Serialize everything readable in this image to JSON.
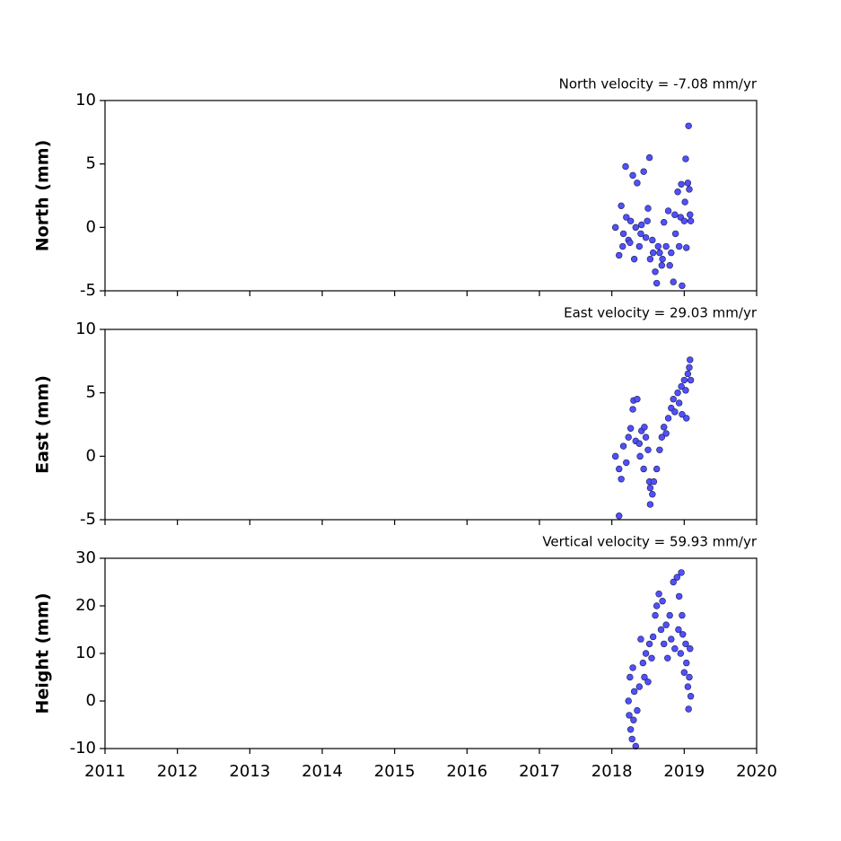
{
  "chart_data": [
    {
      "type": "scatter",
      "title": "North velocity = -7.08 mm/yr",
      "ylabel": "North (mm)",
      "color": "#5050ff",
      "x": [
        2018.05,
        2018.1,
        2018.13,
        2018.15,
        2018.16,
        2018.19,
        2018.2,
        2018.23,
        2018.25,
        2018.26,
        2018.29,
        2018.31,
        2018.33,
        2018.35,
        2018.38,
        2018.4,
        2018.41,
        2018.44,
        2018.47,
        2018.49,
        2018.5,
        2018.52,
        2018.53,
        2018.56,
        2018.57,
        2018.6,
        2018.62,
        2018.64,
        2018.66,
        2018.69,
        2018.7,
        2018.72,
        2018.75,
        2018.78,
        2018.8,
        2018.82,
        2018.85,
        2018.87,
        2018.88,
        2018.91,
        2018.93,
        2018.95,
        2018.96,
        2018.97,
        2019.0,
        2019.01,
        2019.02,
        2019.03,
        2019.05,
        2019.06,
        2019.07,
        2019.08,
        2019.09
      ],
      "values": [
        0,
        -2.2,
        1.7,
        -1.5,
        -0.5,
        4.8,
        0.8,
        -1,
        -1.2,
        0.5,
        4.1,
        -2.5,
        0,
        3.5,
        -1.5,
        -0.5,
        0.2,
        4.4,
        -0.8,
        0.5,
        1.5,
        5.5,
        -2.5,
        -1,
        -2,
        -3.5,
        -4.4,
        -1.5,
        -2,
        -3,
        -2.5,
        0.4,
        -1.5,
        1.3,
        -3,
        -2,
        -4.3,
        1,
        -0.5,
        2.8,
        -1.5,
        0.8,
        3.4,
        -4.6,
        0.5,
        2,
        5.4,
        -1.6,
        3.5,
        8,
        3,
        1,
        0.5
      ],
      "xlim": [
        2011,
        2020
      ],
      "xticks": [
        2011,
        2012,
        2013,
        2014,
        2015,
        2016,
        2017,
        2018,
        2019,
        2020
      ],
      "show_xtick_labels": false,
      "ylim": [
        -5,
        10
      ],
      "yticks": [
        -5,
        0,
        5,
        10
      ]
    },
    {
      "type": "scatter",
      "title": "East velocity = 29.03 mm/yr",
      "ylabel": "East (mm)",
      "color": "#5050ff",
      "x": [
        2018.05,
        2018.1,
        2018.1,
        2018.13,
        2018.16,
        2018.2,
        2018.23,
        2018.26,
        2018.29,
        2018.3,
        2018.33,
        2018.35,
        2018.38,
        2018.39,
        2018.41,
        2018.44,
        2018.45,
        2018.47,
        2018.5,
        2018.52,
        2018.53,
        2018.53,
        2018.56,
        2018.58,
        2018.62,
        2018.66,
        2018.69,
        2018.72,
        2018.75,
        2018.78,
        2018.82,
        2018.85,
        2018.87,
        2018.91,
        2018.93,
        2018.96,
        2018.97,
        2019.0,
        2019.02,
        2019.03,
        2019.05,
        2019.07,
        2019.08,
        2019.09
      ],
      "values": [
        0,
        -1,
        -4.7,
        -1.8,
        0.8,
        -0.5,
        1.5,
        2.2,
        3.7,
        4.4,
        1.2,
        4.5,
        1,
        0,
        2,
        -1,
        2.3,
        1.5,
        0.5,
        -2,
        -2.5,
        -3.8,
        -3,
        -2,
        -1,
        0.5,
        1.5,
        2.3,
        1.8,
        3,
        3.8,
        4.5,
        3.5,
        5,
        4.2,
        5.5,
        3.3,
        6,
        5.2,
        3,
        6.5,
        7,
        7.6,
        6
      ],
      "xlim": [
        2011,
        2020
      ],
      "xticks": [
        2011,
        2012,
        2013,
        2014,
        2015,
        2016,
        2017,
        2018,
        2019,
        2020
      ],
      "show_xtick_labels": false,
      "ylim": [
        -5,
        10
      ],
      "yticks": [
        -5,
        0,
        5,
        10
      ]
    },
    {
      "type": "scatter",
      "title": "Vertical velocity = 59.93 mm/yr",
      "ylabel": "Height (mm)",
      "color": "#5050ff",
      "x": [
        2018.23,
        2018.24,
        2018.25,
        2018.26,
        2018.28,
        2018.29,
        2018.3,
        2018.31,
        2018.33,
        2018.35,
        2018.38,
        2018.4,
        2018.43,
        2018.45,
        2018.47,
        2018.5,
        2018.52,
        2018.55,
        2018.57,
        2018.6,
        2018.62,
        2018.65,
        2018.68,
        2018.7,
        2018.72,
        2018.75,
        2018.77,
        2018.8,
        2018.82,
        2018.85,
        2018.87,
        2018.9,
        2018.92,
        2018.93,
        2018.95,
        2018.96,
        2018.97,
        2018.98,
        2019.0,
        2019.02,
        2019.03,
        2019.05,
        2019.06,
        2019.07,
        2019.08,
        2019.09
      ],
      "values": [
        0,
        -3,
        5,
        -6,
        -8,
        7,
        -4,
        2,
        -9.5,
        -2,
        3,
        13,
        8,
        5,
        10,
        4,
        12,
        9,
        13.5,
        18,
        20,
        22.5,
        15,
        21,
        12,
        16,
        9,
        18,
        13,
        25,
        11,
        26,
        15,
        22,
        10,
        27,
        18,
        14,
        6,
        12,
        8,
        3,
        -1.7,
        5,
        11,
        1
      ],
      "xlim": [
        2011,
        2020
      ],
      "xticks": [
        2011,
        2012,
        2013,
        2014,
        2015,
        2016,
        2017,
        2018,
        2019,
        2020
      ],
      "show_xtick_labels": true,
      "ylim": [
        -10,
        30
      ],
      "yticks": [
        -10,
        0,
        10,
        20,
        30
      ]
    }
  ]
}
